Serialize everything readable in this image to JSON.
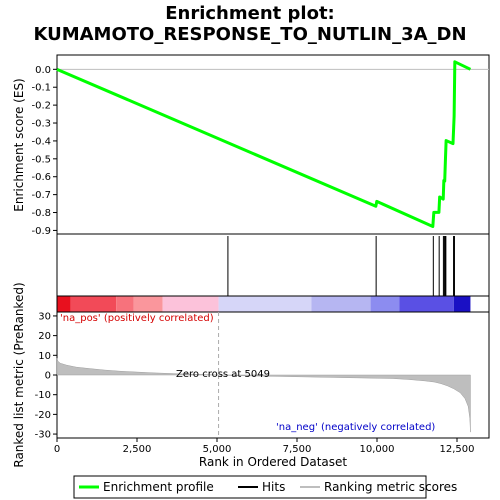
{
  "title_line1": "Enrichment plot:",
  "title_line2": "KUMAMOTO_RESPONSE_TO_NUTLIN_3A_DN",
  "colors": {
    "enrichment": "#00ff00",
    "hits": "#000000",
    "ranking": "#bebebe",
    "pos_label": "#d40000",
    "neg_label": "#0000c8",
    "zero_line": "#aaaaaa"
  },
  "chart_data": [
    {
      "type": "line",
      "name": "enrichment-profile",
      "ylabel": "Enrichment score (ES)",
      "xlim": [
        0,
        13500
      ],
      "ylim": [
        -0.92,
        0.08
      ],
      "yticks": [
        "0.0",
        "-0.1",
        "-0.2",
        "-0.3",
        "-0.4",
        "-0.5",
        "-0.6",
        "-0.7",
        "-0.8",
        "-0.9"
      ],
      "x": [
        0,
        9963,
        9993,
        11744,
        11776,
        11935,
        11958,
        12069,
        12089,
        12116,
        12138,
        12160,
        12375,
        12410,
        12432,
        12920
      ],
      "y": [
        0.0,
        -0.765,
        -0.738,
        -0.878,
        -0.799,
        -0.799,
        -0.713,
        -0.725,
        -0.621,
        -0.625,
        -0.507,
        -0.398,
        -0.415,
        -0.262,
        0.042,
        0.0
      ]
    },
    {
      "type": "scatter",
      "name": "hits",
      "xlim": [
        0,
        13500
      ],
      "x": [
        5341,
        9973,
        11760,
        11943,
        12075,
        12104,
        12129,
        12152,
        12392,
        12421
      ]
    },
    {
      "type": "area",
      "name": "ranked-list-metric",
      "xlabel": "Rank in Ordered Dataset",
      "ylabel": "Ranked list metric (PreRanked)",
      "xlim": [
        0,
        13500
      ],
      "ylim": [
        -32,
        32
      ],
      "xticks": [
        "0",
        "2,500",
        "5,000",
        "7,500",
        "10,000",
        "12,500"
      ],
      "yticks": [
        "30",
        "20",
        "10",
        "0",
        "-10",
        "-20",
        "-30"
      ],
      "x": [
        0,
        30,
        100,
        300,
        600,
        1000,
        1500,
        2000,
        2500,
        3000,
        3500,
        4000,
        4500,
        5049,
        5500,
        6500,
        7500,
        8500,
        9500,
        10500,
        11000,
        11500,
        11800,
        12000,
        12200,
        12400,
        12600,
        12750,
        12850,
        12900,
        12920
      ],
      "values": [
        8.5,
        7.0,
        6.0,
        5.0,
        4.0,
        3.3,
        2.5,
        1.9,
        1.5,
        1.1,
        0.8,
        0.5,
        0.3,
        0.0,
        -0.3,
        -0.6,
        -0.9,
        -1.2,
        -1.5,
        -1.8,
        -2.3,
        -3.0,
        -3.6,
        -4.4,
        -5.5,
        -7.0,
        -9.0,
        -12.0,
        -16.0,
        -22.0,
        -29.0
      ]
    }
  ],
  "annotations": {
    "zero_cross": "Zero cross at 5049",
    "pos": "'na_pos' (positively correlated)",
    "neg": "'na_neg' (negatively correlated)"
  },
  "heat_bar": {
    "blocks": [
      {
        "start": 0,
        "end": 420,
        "color": "#e8101e"
      },
      {
        "start": 420,
        "end": 1850,
        "color": "#f24a58"
      },
      {
        "start": 1850,
        "end": 2400,
        "color": "#f7727c"
      },
      {
        "start": 2400,
        "end": 3300,
        "color": "#fa969c"
      },
      {
        "start": 3300,
        "end": 5049,
        "color": "#fcc2da"
      },
      {
        "start": 5049,
        "end": 7950,
        "color": "#d6d6f8"
      },
      {
        "start": 7950,
        "end": 9800,
        "color": "#b6b6f2"
      },
      {
        "start": 9800,
        "end": 10700,
        "color": "#8c8cf0"
      },
      {
        "start": 10700,
        "end": 12400,
        "color": "#5a50e4"
      },
      {
        "start": 12400,
        "end": 12920,
        "color": "#1a10c4"
      }
    ]
  },
  "legend": {
    "items": [
      {
        "label": "Enrichment profile",
        "kind": "line",
        "color": "#00ff00"
      },
      {
        "label": "Hits",
        "kind": "line",
        "color": "#000000"
      },
      {
        "label": "Ranking metric scores",
        "kind": "line",
        "color": "#bebebe"
      }
    ]
  }
}
